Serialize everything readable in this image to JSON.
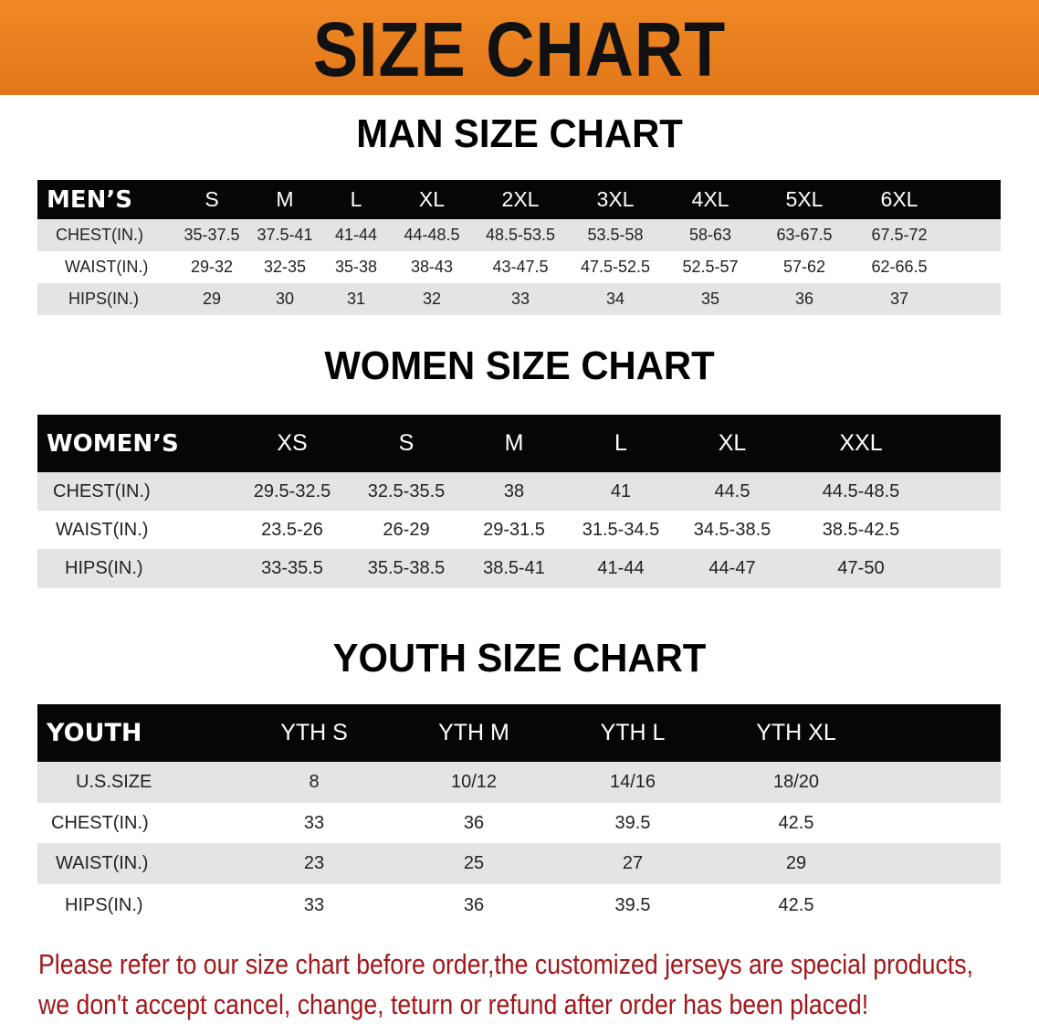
{
  "title": "SIZE CHART",
  "colors": {
    "banner": "#e87d1c",
    "header_row": "#060606",
    "stripe": "#e4e4e4",
    "note": "#a3161a"
  },
  "men": {
    "title": "MAN SIZE CHART",
    "header": [
      "MEN’S",
      "S",
      "M",
      "L",
      "XL",
      "2XL",
      "3XL",
      "4XL",
      "5XL",
      "6XL"
    ],
    "rows": [
      [
        "CHEST(IN.)",
        "35-37.5",
        "37.5-41",
        "41-44",
        "44-48.5",
        "48.5-53.5",
        "53.5-58",
        "58-63",
        "63-67.5",
        "67.5-72"
      ],
      [
        "WAIST(IN.)",
        "29-32",
        "32-35",
        "35-38",
        "38-43",
        "43-47.5",
        "47.5-52.5",
        "52.5-57",
        "57-62",
        "62-66.5"
      ],
      [
        "HIPS(IN.)",
        "29",
        "30",
        "31",
        "32",
        "33",
        "34",
        "35",
        "36",
        "37"
      ]
    ]
  },
  "women": {
    "title": "WOMEN SIZE CHART",
    "header": [
      "WOMEN’S",
      "XS",
      "S",
      "M",
      "L",
      "XL",
      "XXL"
    ],
    "rows": [
      [
        "CHEST(IN.)",
        "29.5-32.5",
        "32.5-35.5",
        "38",
        "41",
        "44.5",
        "44.5-48.5"
      ],
      [
        "WAIST(IN.)",
        "23.5-26",
        "26-29",
        "29-31.5",
        "31.5-34.5",
        "34.5-38.5",
        "38.5-42.5"
      ],
      [
        "HIPS(IN.)",
        "33-35.5",
        "35.5-38.5",
        "38.5-41",
        "41-44",
        "44-47",
        "47-50"
      ]
    ]
  },
  "youth": {
    "title": "YOUTH SIZE CHART",
    "header": [
      "YOUTH",
      "YTH S",
      "YTH M",
      "YTH L",
      "YTH XL"
    ],
    "rows": [
      [
        "U.S.SIZE",
        "8",
        "10/12",
        "14/16",
        "18/20"
      ],
      [
        "CHEST(IN.)",
        "33",
        "36",
        "39.5",
        "42.5"
      ],
      [
        "WAIST(IN.)",
        "23",
        "25",
        "27",
        "29"
      ],
      [
        "HIPS(IN.)",
        "33",
        "36",
        "39.5",
        "42.5"
      ]
    ]
  },
  "note": {
    "line1": "Please refer to our size chart before order,the customized jerseys are special products,",
    "line2": "we don't accept cancel, change, teturn or refund after order has been placed!"
  }
}
